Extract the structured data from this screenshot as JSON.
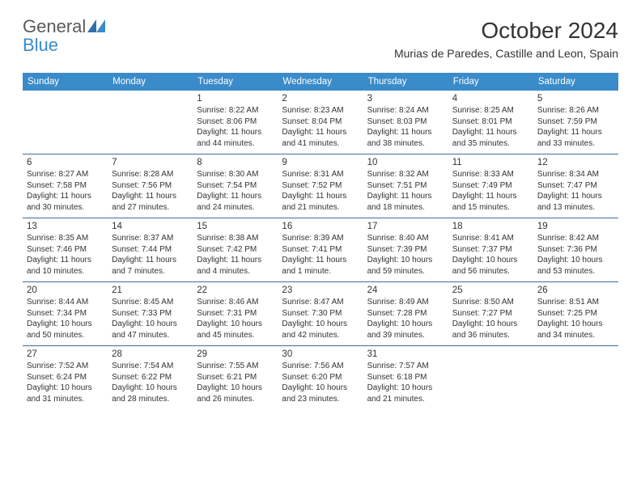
{
  "logo": {
    "word1": "General",
    "word2": "Blue"
  },
  "title": "October 2024",
  "location": "Murias de Paredes, Castille and Leon, Spain",
  "colors": {
    "header_bg": "#3a8bc9",
    "week_divider": "#3a6fa5",
    "text": "#333333",
    "logo_gray": "#5a5a5a",
    "logo_blue": "#3a8bc9",
    "background": "#ffffff"
  },
  "dayNames": [
    "Sunday",
    "Monday",
    "Tuesday",
    "Wednesday",
    "Thursday",
    "Friday",
    "Saturday"
  ],
  "grid": {
    "leading_blanks": 2,
    "days_in_month": 31
  },
  "days": {
    "1": {
      "sunrise": "8:22 AM",
      "sunset": "8:06 PM",
      "daylight": "11 hours and 44 minutes."
    },
    "2": {
      "sunrise": "8:23 AM",
      "sunset": "8:04 PM",
      "daylight": "11 hours and 41 minutes."
    },
    "3": {
      "sunrise": "8:24 AM",
      "sunset": "8:03 PM",
      "daylight": "11 hours and 38 minutes."
    },
    "4": {
      "sunrise": "8:25 AM",
      "sunset": "8:01 PM",
      "daylight": "11 hours and 35 minutes."
    },
    "5": {
      "sunrise": "8:26 AM",
      "sunset": "7:59 PM",
      "daylight": "11 hours and 33 minutes."
    },
    "6": {
      "sunrise": "8:27 AM",
      "sunset": "7:58 PM",
      "daylight": "11 hours and 30 minutes."
    },
    "7": {
      "sunrise": "8:28 AM",
      "sunset": "7:56 PM",
      "daylight": "11 hours and 27 minutes."
    },
    "8": {
      "sunrise": "8:30 AM",
      "sunset": "7:54 PM",
      "daylight": "11 hours and 24 minutes."
    },
    "9": {
      "sunrise": "8:31 AM",
      "sunset": "7:52 PM",
      "daylight": "11 hours and 21 minutes."
    },
    "10": {
      "sunrise": "8:32 AM",
      "sunset": "7:51 PM",
      "daylight": "11 hours and 18 minutes."
    },
    "11": {
      "sunrise": "8:33 AM",
      "sunset": "7:49 PM",
      "daylight": "11 hours and 15 minutes."
    },
    "12": {
      "sunrise": "8:34 AM",
      "sunset": "7:47 PM",
      "daylight": "11 hours and 13 minutes."
    },
    "13": {
      "sunrise": "8:35 AM",
      "sunset": "7:46 PM",
      "daylight": "11 hours and 10 minutes."
    },
    "14": {
      "sunrise": "8:37 AM",
      "sunset": "7:44 PM",
      "daylight": "11 hours and 7 minutes."
    },
    "15": {
      "sunrise": "8:38 AM",
      "sunset": "7:42 PM",
      "daylight": "11 hours and 4 minutes."
    },
    "16": {
      "sunrise": "8:39 AM",
      "sunset": "7:41 PM",
      "daylight": "11 hours and 1 minute."
    },
    "17": {
      "sunrise": "8:40 AM",
      "sunset": "7:39 PM",
      "daylight": "10 hours and 59 minutes."
    },
    "18": {
      "sunrise": "8:41 AM",
      "sunset": "7:37 PM",
      "daylight": "10 hours and 56 minutes."
    },
    "19": {
      "sunrise": "8:42 AM",
      "sunset": "7:36 PM",
      "daylight": "10 hours and 53 minutes."
    },
    "20": {
      "sunrise": "8:44 AM",
      "sunset": "7:34 PM",
      "daylight": "10 hours and 50 minutes."
    },
    "21": {
      "sunrise": "8:45 AM",
      "sunset": "7:33 PM",
      "daylight": "10 hours and 47 minutes."
    },
    "22": {
      "sunrise": "8:46 AM",
      "sunset": "7:31 PM",
      "daylight": "10 hours and 45 minutes."
    },
    "23": {
      "sunrise": "8:47 AM",
      "sunset": "7:30 PM",
      "daylight": "10 hours and 42 minutes."
    },
    "24": {
      "sunrise": "8:49 AM",
      "sunset": "7:28 PM",
      "daylight": "10 hours and 39 minutes."
    },
    "25": {
      "sunrise": "8:50 AM",
      "sunset": "7:27 PM",
      "daylight": "10 hours and 36 minutes."
    },
    "26": {
      "sunrise": "8:51 AM",
      "sunset": "7:25 PM",
      "daylight": "10 hours and 34 minutes."
    },
    "27": {
      "sunrise": "7:52 AM",
      "sunset": "6:24 PM",
      "daylight": "10 hours and 31 minutes."
    },
    "28": {
      "sunrise": "7:54 AM",
      "sunset": "6:22 PM",
      "daylight": "10 hours and 28 minutes."
    },
    "29": {
      "sunrise": "7:55 AM",
      "sunset": "6:21 PM",
      "daylight": "10 hours and 26 minutes."
    },
    "30": {
      "sunrise": "7:56 AM",
      "sunset": "6:20 PM",
      "daylight": "10 hours and 23 minutes."
    },
    "31": {
      "sunrise": "7:57 AM",
      "sunset": "6:18 PM",
      "daylight": "10 hours and 21 minutes."
    }
  },
  "labels": {
    "sunrise_prefix": "Sunrise: ",
    "sunset_prefix": "Sunset: ",
    "daylight_prefix": "Daylight: "
  }
}
